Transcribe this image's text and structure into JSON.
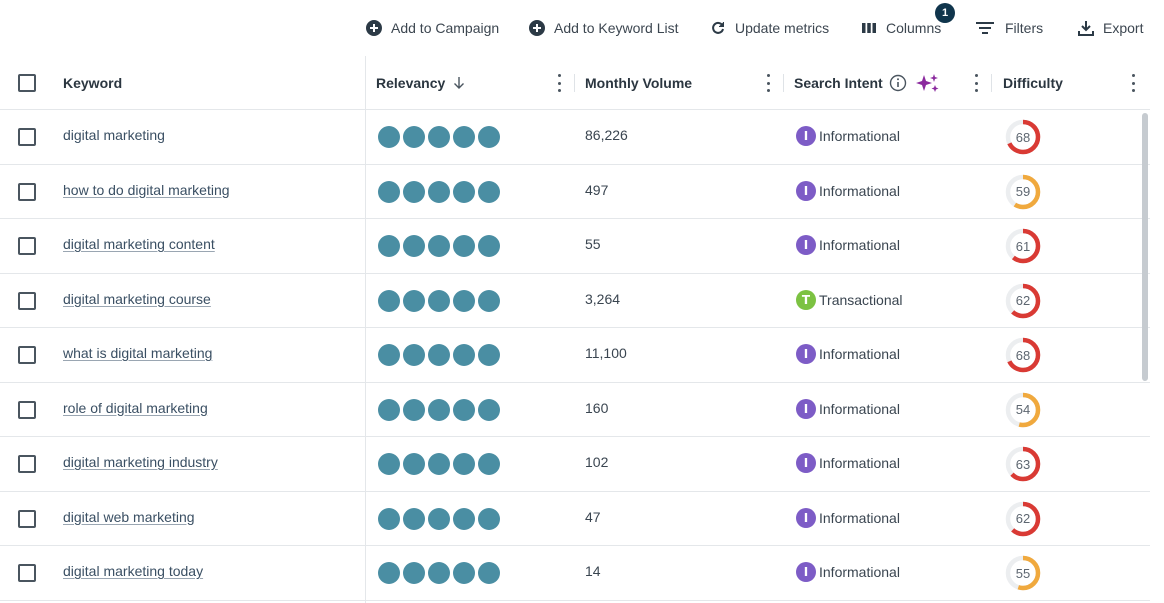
{
  "toolbar": {
    "add_to_campaign": "Add to Campaign",
    "add_to_keyword_list": "Add to Keyword List",
    "update_metrics": "Update metrics",
    "columns": "Columns",
    "columns_badge": "1",
    "filters": "Filters",
    "export": "Export"
  },
  "table": {
    "headers": {
      "keyword": "Keyword",
      "relevancy": "Relevancy",
      "monthly_volume": "Monthly Volume",
      "search_intent": "Search Intent",
      "difficulty": "Difficulty"
    },
    "rows": [
      {
        "keyword": "digital marketing",
        "relevancy": 5,
        "volume": "86,226",
        "intent": "Informational",
        "intent_letter": "I",
        "difficulty": "68",
        "difficulty_value": 68
      },
      {
        "keyword": "how to do digital marketing",
        "relevancy": 5,
        "volume": "497",
        "intent": "Informational",
        "intent_letter": "I",
        "difficulty": "59",
        "difficulty_value": 59
      },
      {
        "keyword": "digital marketing content",
        "relevancy": 5,
        "volume": "55",
        "intent": "Informational",
        "intent_letter": "I",
        "difficulty": "61",
        "difficulty_value": 61
      },
      {
        "keyword": "digital marketing course",
        "relevancy": 5,
        "volume": "3,264",
        "intent": "Transactional",
        "intent_letter": "T",
        "difficulty": "62",
        "difficulty_value": 62
      },
      {
        "keyword": "what is digital marketing",
        "relevancy": 5,
        "volume": "11,100",
        "intent": "Informational",
        "intent_letter": "I",
        "difficulty": "68",
        "difficulty_value": 68
      },
      {
        "keyword": "role of digital marketing",
        "relevancy": 5,
        "volume": "160",
        "intent": "Informational",
        "intent_letter": "I",
        "difficulty": "54",
        "difficulty_value": 54
      },
      {
        "keyword": "digital marketing industry",
        "relevancy": 5,
        "volume": "102",
        "intent": "Informational",
        "intent_letter": "I",
        "difficulty": "63",
        "difficulty_value": 63
      },
      {
        "keyword": "digital web marketing",
        "relevancy": 5,
        "volume": "47",
        "intent": "Informational",
        "intent_letter": "I",
        "difficulty": "62",
        "difficulty_value": 62
      },
      {
        "keyword": "digital marketing today",
        "relevancy": 5,
        "volume": "14",
        "intent": "Informational",
        "intent_letter": "I",
        "difficulty": "55",
        "difficulty_value": 55
      }
    ]
  },
  "colors": {
    "relevancy_dot": "#4a8ea3",
    "informational": "#7d5cc6",
    "transactional": "#7cc242",
    "difficulty_hard": "#d93a34",
    "difficulty_medium": "#f0a93e",
    "ai_sparkle": "#8b2a9e"
  }
}
